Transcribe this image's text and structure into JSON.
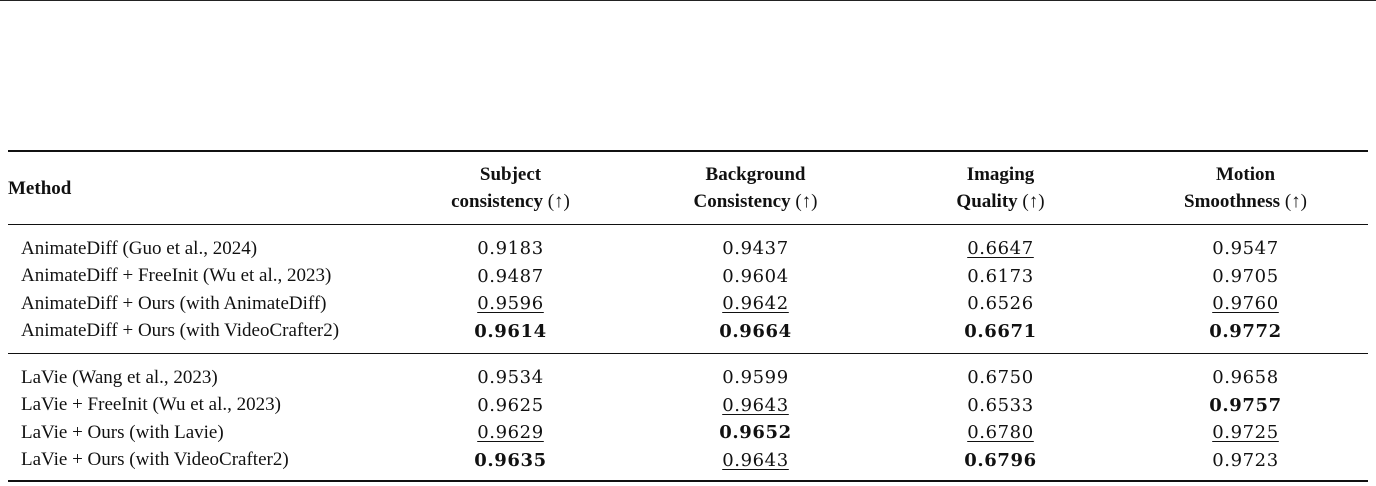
{
  "table": {
    "headers": {
      "method": "Method",
      "subject": [
        "Subject",
        "consistency",
        "(↑)"
      ],
      "background": [
        "Background",
        "Consistency",
        "(↑)"
      ],
      "imaging": [
        "Imaging",
        "Quality",
        "(↑)"
      ],
      "motion": [
        "Motion",
        "Smoothness",
        "(↑)"
      ]
    },
    "group1": [
      {
        "method": "AnimateDiff (Guo et al., 2024)",
        "subject": "0.9183",
        "background": "0.9437",
        "imaging": "0.6647",
        "motion": "0.9547"
      },
      {
        "method": "AnimateDiff + FreeInit (Wu et al., 2023)",
        "subject": "0.9487",
        "background": "0.9604",
        "imaging": "0.6173",
        "motion": "0.9705"
      },
      {
        "method": "AnimateDiff + Ours (with AnimateDiff)",
        "subject": "0.9596",
        "background": "0.9642",
        "imaging": "0.6526",
        "motion": "0.9760"
      },
      {
        "method": "AnimateDiff + Ours (with VideoCrafter2)",
        "subject": "0.9614",
        "background": "0.9664",
        "imaging": "0.6671",
        "motion": "0.9772"
      }
    ],
    "group2": [
      {
        "method": "LaVie (Wang et al., 2023)",
        "subject": "0.9534",
        "background": "0.9599",
        "imaging": "0.6750",
        "motion": "0.9658"
      },
      {
        "method": "LaVie + FreeInit (Wu et al., 2023)",
        "subject": "0.9625",
        "background": "0.9643",
        "imaging": "0.6533",
        "motion": "0.9757"
      },
      {
        "method": "LaVie + Ours (with Lavie)",
        "subject": "0.9629",
        "background": "0.9652",
        "imaging": "0.6780",
        "motion": "0.9725"
      },
      {
        "method": "LaVie + Ours (with VideoCrafter2)",
        "subject": "0.9635",
        "background": "0.9643",
        "imaging": "0.6796",
        "motion": "0.9723"
      }
    ]
  }
}
